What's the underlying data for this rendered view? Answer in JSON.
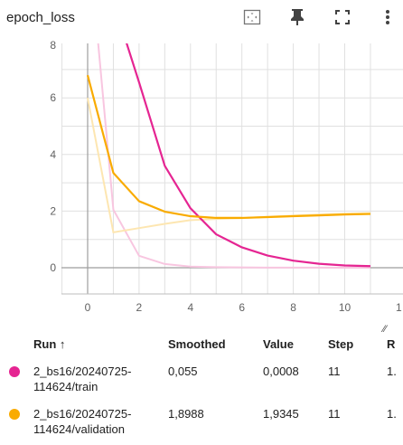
{
  "header": {
    "title": "epoch_loss",
    "icons": [
      "fit-domain-icon",
      "pin-icon",
      "fullscreen-icon",
      "more-vert-icon"
    ]
  },
  "chart_data": {
    "type": "line",
    "title": "",
    "xlabel": "",
    "ylabel": "",
    "xlim": [
      -1,
      11.5
    ],
    "ylim": [
      -1,
      8
    ],
    "x_ticks": [
      "0",
      "2",
      "4",
      "6",
      "8",
      "10",
      "1"
    ],
    "y_ticks": [
      "8",
      "6",
      "4",
      "2",
      "0"
    ],
    "grid": true,
    "series": [
      {
        "name": "2_bs16/20240725-114624/train",
        "color": "#e52592",
        "raw_color": "#f8c6e0",
        "x": [
          0,
          1,
          2,
          3,
          4,
          5,
          6,
          7,
          8,
          9,
          10,
          11
        ],
        "smoothed": [
          12.2,
          9.4,
          6.55,
          3.6,
          2.1,
          1.18,
          0.72,
          0.43,
          0.25,
          0.14,
          0.08,
          0.055
        ],
        "raw": [
          12.0,
          2.05,
          0.42,
          0.13,
          0.04,
          0.02,
          0.01,
          0.005,
          0.003,
          0.002,
          0.001,
          0.0008
        ]
      },
      {
        "name": "2_bs16/20240725-114624/validation",
        "color": "#f9ab00",
        "raw_color": "#fde6b1",
        "x": [
          0,
          1,
          2,
          3,
          4,
          5,
          6,
          7,
          8,
          9,
          10,
          11
        ],
        "smoothed": [
          6.8,
          3.35,
          2.35,
          1.98,
          1.82,
          1.76,
          1.76,
          1.79,
          1.82,
          1.85,
          1.88,
          1.8988
        ],
        "raw": [
          6.0,
          1.25,
          1.4,
          1.55,
          1.68,
          1.72,
          1.75,
          1.8,
          1.84,
          1.88,
          1.91,
          1.9345
        ]
      }
    ]
  },
  "table": {
    "headers": {
      "run": "Run ↑",
      "smoothed": "Smoothed",
      "value": "Value",
      "step": "Step",
      "relative": "R"
    },
    "rows": [
      {
        "color": "#e52592",
        "run_line1": "2_bs16/20240725-",
        "run_line2": "114624/train",
        "smoothed": "0,055",
        "value": "0,0008",
        "step": "11",
        "relative": "1."
      },
      {
        "color": "#f9ab00",
        "run_line1": "2_bs16/20240725-",
        "run_line2": "114624/validation",
        "smoothed": "1,8988",
        "value": "1,9345",
        "step": "11",
        "relative": "1."
      }
    ]
  }
}
